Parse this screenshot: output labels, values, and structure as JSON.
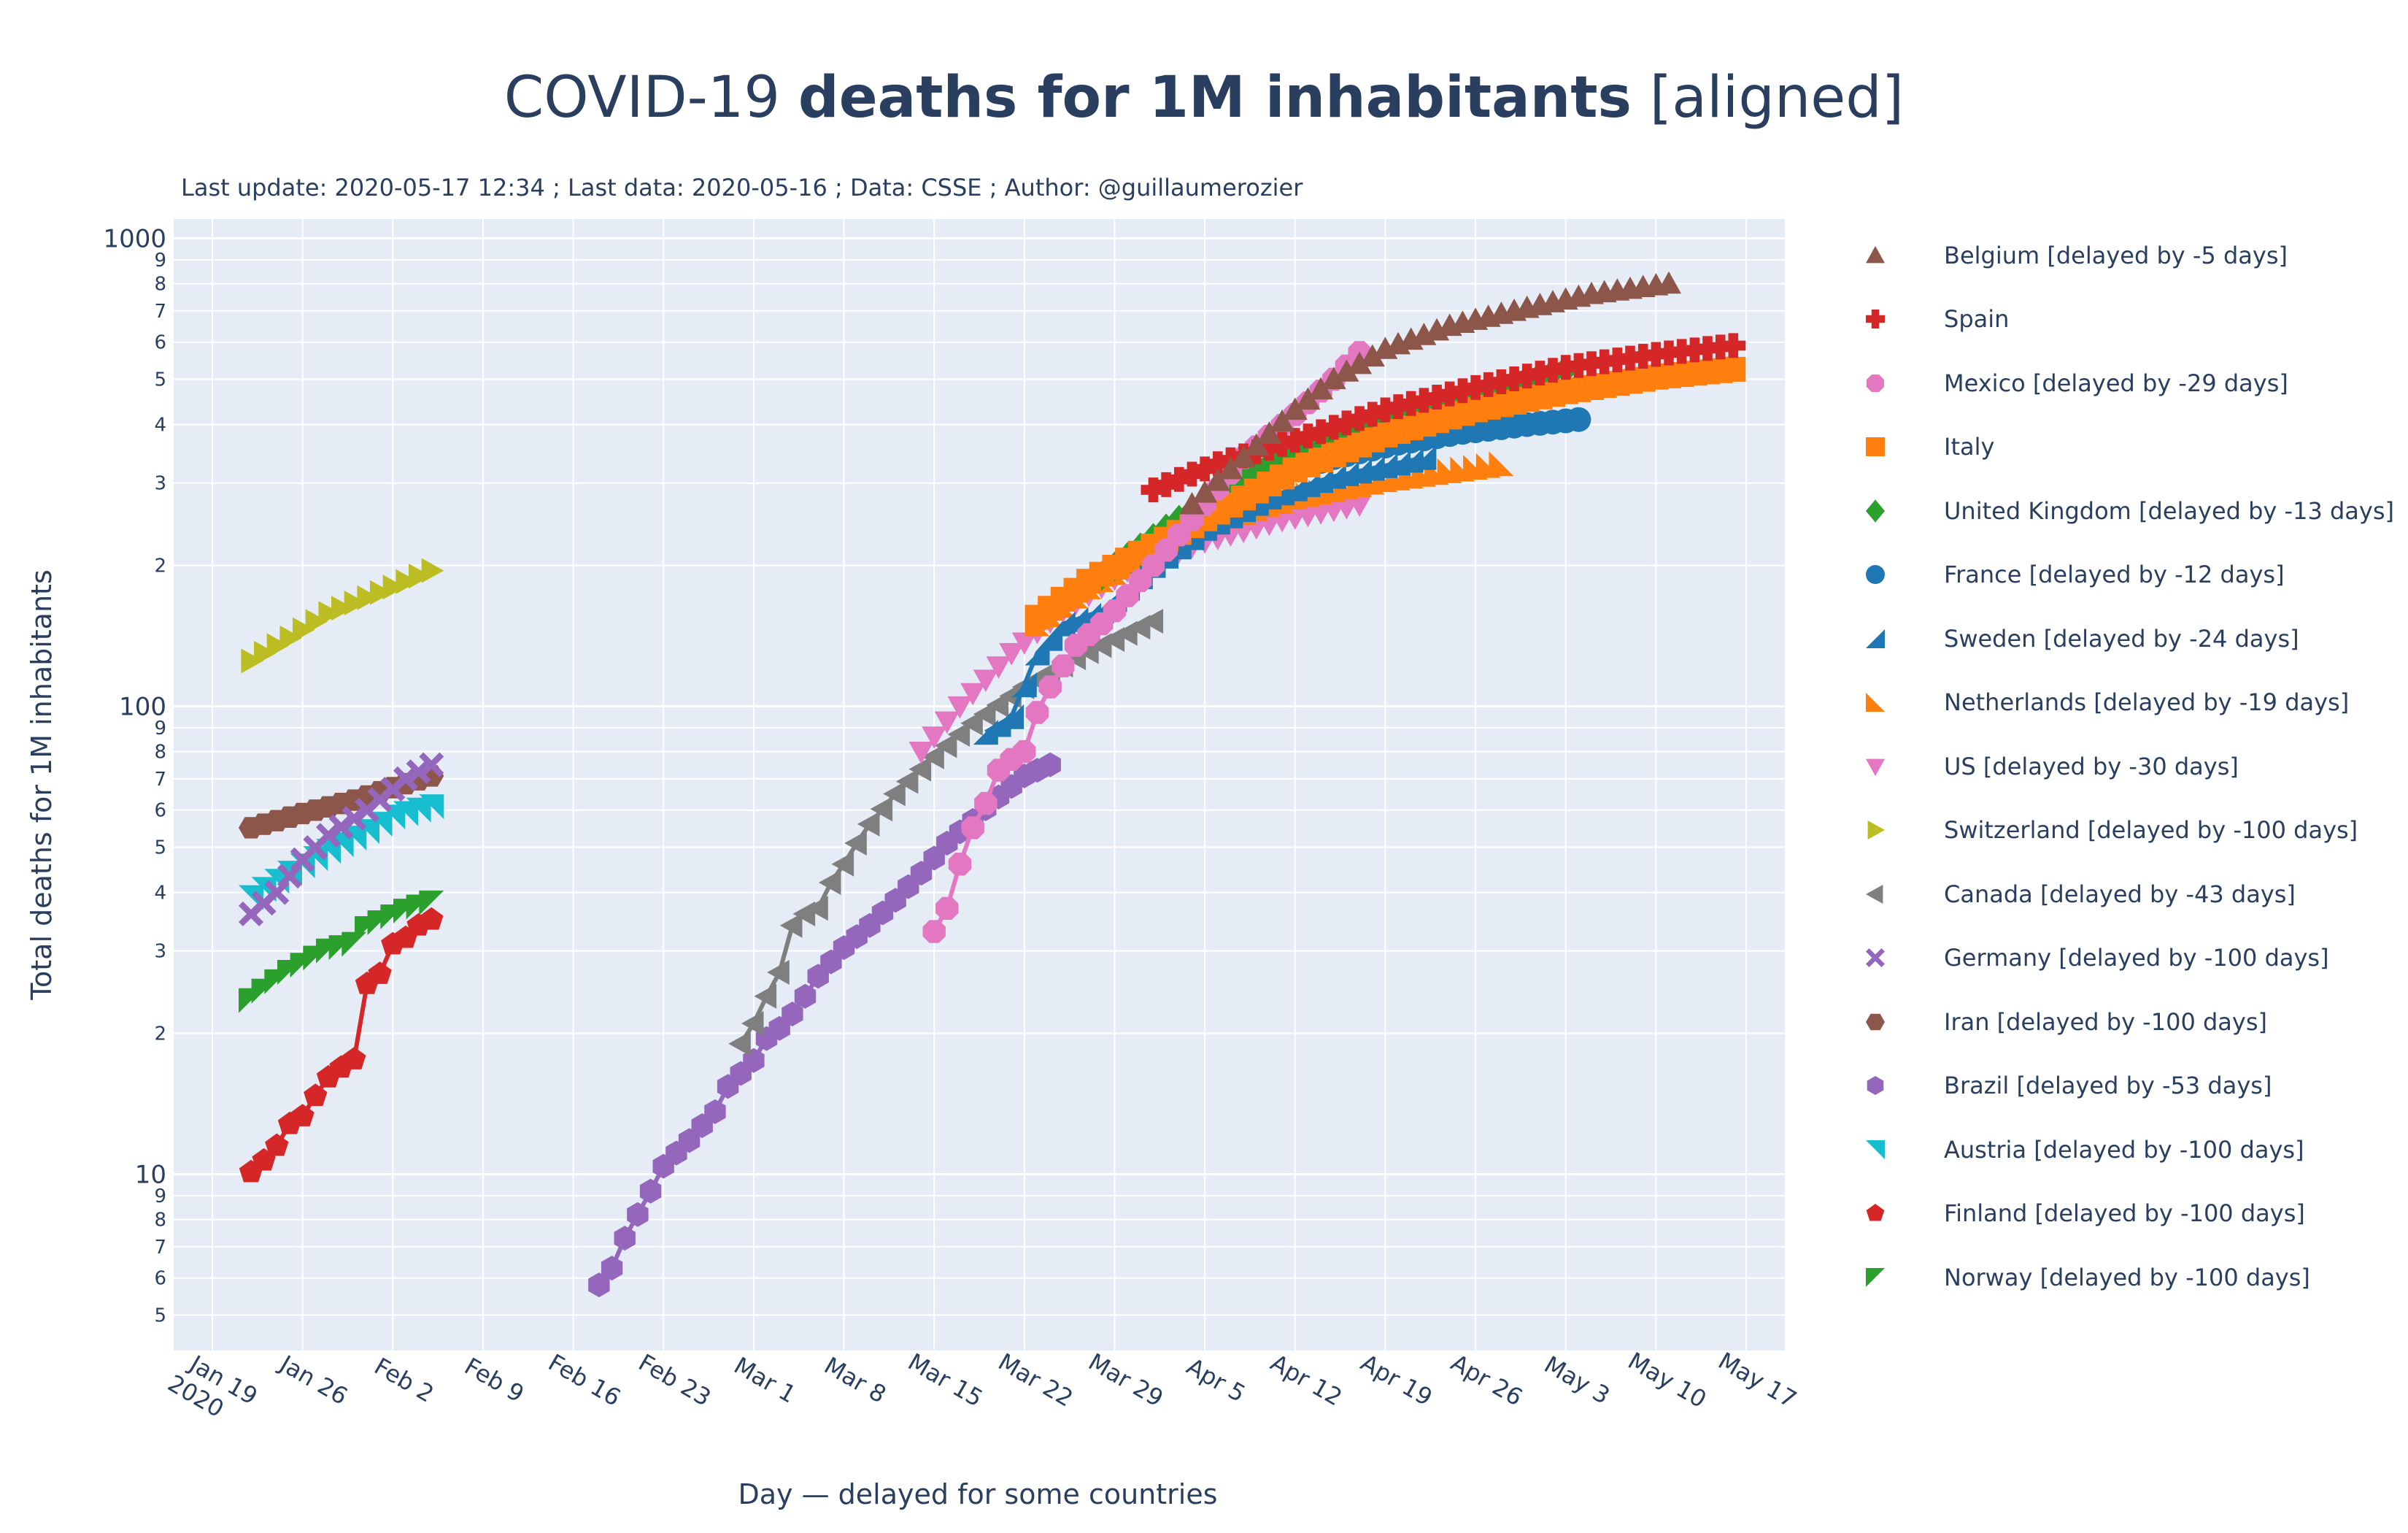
{
  "chart_data": {
    "type": "scatter",
    "title_prefix": "COVID-19 ",
    "title_bold": "deaths for 1M inhabitants",
    "title_suffix": " [aligned]",
    "subtitle": "Last update: 2020-05-17 12:34 ; Last data: 2020-05-16 ; Data: CSSE ; Author: @guillaumerozier",
    "xlabel": "Day — delayed for some countries",
    "ylabel": "Total deaths  for 1M inhabitants",
    "yscale": "log",
    "ylim": [
      4.2,
      1100
    ],
    "xlim": [
      "2020-01-16",
      "2020-05-20"
    ],
    "grid": true,
    "legend_position": "right",
    "x_tick_labels": [
      "Jan 19\n2020",
      "Jan 26",
      "Feb 2",
      "Feb 9",
      "Feb 16",
      "Feb 23",
      "Mar 1",
      "Mar 8",
      "Mar 15",
      "Mar 22",
      "Mar 29",
      "Apr 5",
      "Apr 12",
      "Apr 19",
      "Apr 26",
      "May 3",
      "May 10",
      "May 17"
    ],
    "x_tick_dates": [
      "2020-01-19",
      "2020-01-26",
      "2020-02-02",
      "2020-02-09",
      "2020-02-16",
      "2020-02-23",
      "2020-03-01",
      "2020-03-08",
      "2020-03-15",
      "2020-03-22",
      "2020-03-29",
      "2020-04-05",
      "2020-04-12",
      "2020-04-19",
      "2020-04-26",
      "2020-05-03",
      "2020-05-10",
      "2020-05-17"
    ],
    "y_major_ticks": [
      {
        "value": 10,
        "label": "10"
      },
      {
        "value": 100,
        "label": "100"
      },
      {
        "value": 1000,
        "label": "1000"
      }
    ],
    "y_minor_ticks": [
      {
        "value": 5,
        "label": "5"
      },
      {
        "value": 6,
        "label": "6"
      },
      {
        "value": 7,
        "label": "7"
      },
      {
        "value": 8,
        "label": "8"
      },
      {
        "value": 9,
        "label": "9"
      },
      {
        "value": 20,
        "label": "2"
      },
      {
        "value": 30,
        "label": "3"
      },
      {
        "value": 40,
        "label": "4"
      },
      {
        "value": 50,
        "label": "5"
      },
      {
        "value": 60,
        "label": "6"
      },
      {
        "value": 70,
        "label": "7"
      },
      {
        "value": 80,
        "label": "8"
      },
      {
        "value": 90,
        "label": "9"
      },
      {
        "value": 200,
        "label": "2"
      },
      {
        "value": 300,
        "label": "3"
      },
      {
        "value": 400,
        "label": "4"
      },
      {
        "value": 500,
        "label": "5"
      },
      {
        "value": 600,
        "label": "6"
      },
      {
        "value": 700,
        "label": "7"
      },
      {
        "value": 800,
        "label": "8"
      },
      {
        "value": 900,
        "label": "9"
      }
    ],
    "series": [
      {
        "name": "Belgium [delayed by -5 days]",
        "color": "#8c564b",
        "marker": "triangle-up",
        "lines": false,
        "start": "2020-04-04",
        "end": "2020-05-11",
        "anchors": [
          [
            "2020-04-04",
            270
          ],
          [
            "2020-04-08",
            340
          ],
          [
            "2020-04-12",
            430
          ],
          [
            "2020-04-15",
            500
          ],
          [
            "2020-04-19",
            580
          ],
          [
            "2020-04-24",
            650
          ],
          [
            "2020-04-30",
            710
          ],
          [
            "2020-05-05",
            760
          ],
          [
            "2020-05-11",
            800
          ]
        ]
      },
      {
        "name": "Spain",
        "color": "#d62728",
        "marker": "cross",
        "lines": false,
        "start": "2020-04-01",
        "end": "2020-05-16",
        "anchors": [
          [
            "2020-04-01",
            290
          ],
          [
            "2020-04-06",
            330
          ],
          [
            "2020-04-12",
            370
          ],
          [
            "2020-04-19",
            430
          ],
          [
            "2020-04-26",
            480
          ],
          [
            "2020-05-03",
            530
          ],
          [
            "2020-05-10",
            565
          ],
          [
            "2020-05-16",
            590
          ]
        ]
      },
      {
        "name": "Mexico [delayed by -29 days]",
        "color": "#e377c2",
        "marker": "octagon",
        "lines": true,
        "start": "2020-03-15",
        "end": "2020-04-17",
        "anchors": [
          [
            "2020-03-15",
            33
          ],
          [
            "2020-03-16",
            37
          ],
          [
            "2020-03-17",
            46
          ],
          [
            "2020-03-18",
            55
          ],
          [
            "2020-03-19",
            62
          ],
          [
            "2020-03-20",
            73
          ],
          [
            "2020-03-21",
            77
          ],
          [
            "2020-03-22",
            80
          ],
          [
            "2020-03-23",
            97
          ],
          [
            "2020-03-24",
            110
          ],
          [
            "2020-03-25",
            122
          ],
          [
            "2020-03-26",
            135
          ],
          [
            "2020-03-28",
            150
          ],
          [
            "2020-03-29",
            160
          ],
          [
            "2020-04-01",
            200
          ],
          [
            "2020-04-05",
            270
          ],
          [
            "2020-04-08",
            340
          ],
          [
            "2020-04-12",
            420
          ],
          [
            "2020-04-15",
            500
          ],
          [
            "2020-04-17",
            570
          ]
        ]
      },
      {
        "name": "Italy",
        "color": "#ff7f0e",
        "marker": "square",
        "lines": false,
        "start": "2020-03-23",
        "end": "2020-05-16",
        "anchors": [
          [
            "2020-03-23",
            155
          ],
          [
            "2020-03-27",
            185
          ],
          [
            "2020-04-01",
            220
          ],
          [
            "2020-04-06",
            260
          ],
          [
            "2020-04-12",
            320
          ],
          [
            "2020-04-19",
            380
          ],
          [
            "2020-04-26",
            430
          ],
          [
            "2020-05-03",
            470
          ],
          [
            "2020-05-10",
            505
          ],
          [
            "2020-05-16",
            525
          ]
        ]
      },
      {
        "name": "United Kingdom [delayed by -13 days]",
        "color": "#2ca02c",
        "marker": "diamond",
        "lines": false,
        "start": "2020-03-28",
        "end": "2020-05-03",
        "anchors": [
          [
            "2020-03-28",
            190
          ],
          [
            "2020-04-02",
            240
          ],
          [
            "2020-04-08",
            310
          ],
          [
            "2020-04-14",
            370
          ],
          [
            "2020-04-20",
            420
          ],
          [
            "2020-04-26",
            470
          ],
          [
            "2020-05-03",
            525
          ]
        ]
      },
      {
        "name": "France [delayed by -12 days]",
        "color": "#1f77b4",
        "marker": "circle",
        "lines": false,
        "start": "2020-03-31",
        "end": "2020-05-04",
        "anchors": [
          [
            "2020-03-31",
            200
          ],
          [
            "2020-04-03",
            240
          ],
          [
            "2020-04-06",
            275
          ],
          [
            "2020-04-10",
            310
          ],
          [
            "2020-04-15",
            340
          ],
          [
            "2020-04-20",
            365
          ],
          [
            "2020-04-25",
            385
          ],
          [
            "2020-04-30",
            400
          ],
          [
            "2020-05-04",
            410
          ]
        ]
      },
      {
        "name": "Sweden [delayed by -24 days]",
        "color": "#1f77b4",
        "marker": "triangle-sw",
        "lines": true,
        "start": "2020-03-19",
        "end": "2020-04-22",
        "anchors": [
          [
            "2020-03-19",
            88
          ],
          [
            "2020-03-21",
            95
          ],
          [
            "2020-03-23",
            130
          ],
          [
            "2020-03-25",
            150
          ],
          [
            "2020-03-28",
            160
          ],
          [
            "2020-04-01",
            200
          ],
          [
            "2020-04-05",
            240
          ],
          [
            "2020-04-10",
            280
          ],
          [
            "2020-04-15",
            310
          ],
          [
            "2020-04-22",
            340
          ]
        ]
      },
      {
        "name": "Netherlands [delayed by -19 days]",
        "color": "#ff7f0e",
        "marker": "triangle-ne",
        "lines": false,
        "start": "2020-03-23",
        "end": "2020-04-28",
        "anchors": [
          [
            "2020-03-23",
            150
          ],
          [
            "2020-03-27",
            180
          ],
          [
            "2020-04-01",
            215
          ],
          [
            "2020-04-06",
            250
          ],
          [
            "2020-04-12",
            280
          ],
          [
            "2020-04-19",
            305
          ],
          [
            "2020-04-28",
            330
          ]
        ]
      },
      {
        "name": "US [delayed by -30 days]",
        "color": "#e377c2",
        "marker": "triangle-down",
        "lines": false,
        "start": "2020-03-14",
        "end": "2020-04-17",
        "anchors": [
          [
            "2020-03-14",
            80
          ],
          [
            "2020-03-17",
            100
          ],
          [
            "2020-03-21",
            130
          ],
          [
            "2020-03-25",
            160
          ],
          [
            "2020-03-30",
            195
          ],
          [
            "2020-04-05",
            225
          ],
          [
            "2020-04-11",
            250
          ],
          [
            "2020-04-17",
            270
          ]
        ]
      },
      {
        "name": "Switzerland [delayed by -100 days]",
        "color": "#bcbd22",
        "marker": "triangle-right",
        "lines": false,
        "start": "2020-01-22",
        "end": "2020-02-05",
        "anchors": [
          [
            "2020-01-22",
            125
          ],
          [
            "2020-01-25",
            140
          ],
          [
            "2020-01-28",
            158
          ],
          [
            "2020-02-01",
            175
          ],
          [
            "2020-02-05",
            195
          ]
        ]
      },
      {
        "name": "Canada [delayed by -43 days]",
        "color": "#7f7f7f",
        "marker": "triangle-left",
        "lines": true,
        "start": "2020-02-29",
        "end": "2020-04-01",
        "anchors": [
          [
            "2020-02-29",
            19
          ],
          [
            "2020-03-01",
            21
          ],
          [
            "2020-03-02",
            24
          ],
          [
            "2020-03-03",
            27
          ],
          [
            "2020-03-04",
            34
          ],
          [
            "2020-03-05",
            36
          ],
          [
            "2020-03-06",
            37
          ],
          [
            "2020-03-07",
            42
          ],
          [
            "2020-03-08",
            46
          ],
          [
            "2020-03-09",
            51
          ],
          [
            "2020-03-10",
            56
          ],
          [
            "2020-03-12",
            65
          ],
          [
            "2020-03-15",
            78
          ],
          [
            "2020-03-18",
            92
          ],
          [
            "2020-03-22",
            110
          ],
          [
            "2020-03-26",
            127
          ],
          [
            "2020-04-01",
            152
          ]
        ]
      },
      {
        "name": "Germany [delayed by -100 days]",
        "color": "#9467bd",
        "marker": "x",
        "lines": false,
        "start": "2020-01-22",
        "end": "2020-02-05",
        "anchors": [
          [
            "2020-01-22",
            36
          ],
          [
            "2020-01-24",
            40
          ],
          [
            "2020-01-26",
            47
          ],
          [
            "2020-01-28",
            53
          ],
          [
            "2020-01-31",
            60
          ],
          [
            "2020-02-03",
            70
          ],
          [
            "2020-02-05",
            75
          ]
        ]
      },
      {
        "name": "Iran [delayed by -100 days]",
        "color": "#8c564b",
        "marker": "hexagon2",
        "lines": false,
        "start": "2020-01-22",
        "end": "2020-02-05",
        "anchors": [
          [
            "2020-01-22",
            55
          ],
          [
            "2020-01-26",
            59
          ],
          [
            "2020-01-30",
            63
          ],
          [
            "2020-02-02",
            67
          ],
          [
            "2020-02-05",
            71
          ]
        ]
      },
      {
        "name": "Brazil [delayed by -53 days]",
        "color": "#9467bd",
        "marker": "hexagon",
        "lines": true,
        "start": "2020-02-18",
        "end": "2020-03-24",
        "anchors": [
          [
            "2020-02-18",
            5.8
          ],
          [
            "2020-02-19",
            6.3
          ],
          [
            "2020-02-20",
            7.3
          ],
          [
            "2020-02-21",
            8.2
          ],
          [
            "2020-02-22",
            9.2
          ],
          [
            "2020-02-23",
            10.4
          ],
          [
            "2020-02-24",
            11.1
          ],
          [
            "2020-02-25",
            11.8
          ],
          [
            "2020-02-26",
            12.7
          ],
          [
            "2020-02-27",
            13.6
          ],
          [
            "2020-02-28",
            15.4
          ],
          [
            "2020-03-01",
            17.5
          ],
          [
            "2020-03-02",
            19.5
          ],
          [
            "2020-03-03",
            20.5
          ],
          [
            "2020-03-04",
            22
          ],
          [
            "2020-03-05",
            24
          ],
          [
            "2020-03-06",
            26.5
          ],
          [
            "2020-03-08",
            30.5
          ],
          [
            "2020-03-10",
            34
          ],
          [
            "2020-03-12",
            38.5
          ],
          [
            "2020-03-14",
            44
          ],
          [
            "2020-03-16",
            51
          ],
          [
            "2020-03-18",
            57
          ],
          [
            "2020-03-20",
            64
          ],
          [
            "2020-03-22",
            71
          ],
          [
            "2020-03-24",
            75
          ]
        ]
      },
      {
        "name": "Austria [delayed by -100 days]",
        "color": "#17becf",
        "marker": "triangle-nw",
        "lines": false,
        "start": "2020-01-22",
        "end": "2020-02-05",
        "anchors": [
          [
            "2020-01-22",
            39
          ],
          [
            "2020-01-25",
            44
          ],
          [
            "2020-01-28",
            49
          ],
          [
            "2020-01-31",
            54
          ],
          [
            "2020-02-02",
            58
          ],
          [
            "2020-02-05",
            61
          ]
        ]
      },
      {
        "name": "Finland [delayed by -100 days]",
        "color": "#d62728",
        "marker": "pentagon",
        "lines": true,
        "start": "2020-01-22",
        "end": "2020-02-05",
        "anchors": [
          [
            "2020-01-22",
            10.1
          ],
          [
            "2020-01-23",
            10.7
          ],
          [
            "2020-01-24",
            11.5
          ],
          [
            "2020-01-25",
            12.8
          ],
          [
            "2020-01-26",
            13.3
          ],
          [
            "2020-01-27",
            14.7
          ],
          [
            "2020-01-28",
            16.1
          ],
          [
            "2020-01-29",
            16.9
          ],
          [
            "2020-01-30",
            17.6
          ],
          [
            "2020-01-31",
            25.5
          ],
          [
            "2020-02-01",
            26.8
          ],
          [
            "2020-02-02",
            31
          ],
          [
            "2020-02-03",
            32
          ],
          [
            "2020-02-04",
            34
          ],
          [
            "2020-02-05",
            35
          ]
        ]
      },
      {
        "name": "Norway [delayed by -100 days]",
        "color": "#2ca02c",
        "marker": "triangle-se",
        "lines": false,
        "start": "2020-01-22",
        "end": "2020-02-05",
        "anchors": [
          [
            "2020-01-22",
            23.5
          ],
          [
            "2020-01-25",
            27
          ],
          [
            "2020-01-28",
            30
          ],
          [
            "2020-01-30",
            31
          ],
          [
            "2020-01-31",
            33.5
          ],
          [
            "2020-02-03",
            36.5
          ],
          [
            "2020-02-05",
            38
          ]
        ]
      }
    ]
  }
}
